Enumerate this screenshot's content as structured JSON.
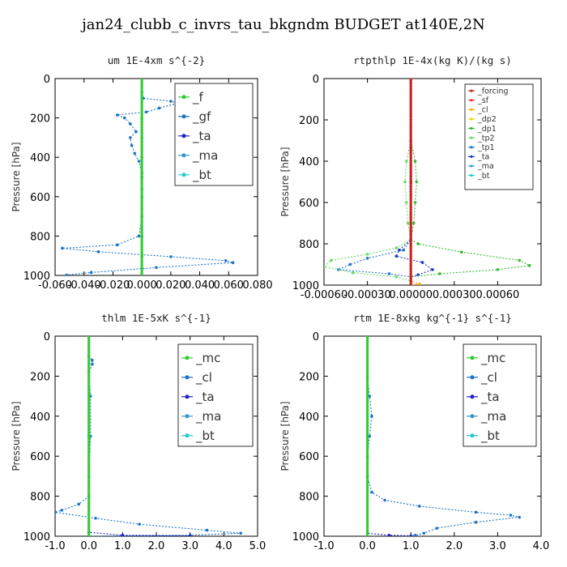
{
  "title": "jan24_clubb_c_invrs_tau_bkgndm  BUDGET at140E,2N",
  "chart_data": [
    {
      "type": "line",
      "title": "um   1E-4xm s^{-2}",
      "ylabel": "Pressure [hPa]",
      "xlim": [
        -0.06,
        0.08
      ],
      "ylim": [
        1000,
        0
      ],
      "xticks": [
        "-0.060",
        "-0.040",
        "-0.020",
        "0.000",
        "0.020",
        "0.040",
        "0.060",
        "0.080"
      ],
      "xtick_values": [
        -0.06,
        -0.04,
        -0.02,
        0.0,
        0.02,
        0.04,
        0.06,
        0.08
      ],
      "yticks": [
        0,
        200,
        400,
        600,
        800,
        1000
      ],
      "legend": [
        "_f",
        "_gf",
        "_ta",
        "_ma",
        "_bt"
      ],
      "series": [
        {
          "name": "_f",
          "color": "#33cc33",
          "points": [
            [
              0.0,
              0
            ],
            [
              0.0,
              100
            ],
            [
              0.0,
              200
            ],
            [
              0.0,
              300
            ],
            [
              0.0,
              400
            ],
            [
              0.0,
              500
            ],
            [
              0.0,
              600
            ],
            [
              0.0,
              700
            ],
            [
              0.0,
              800
            ],
            [
              0.0,
              900
            ],
            [
              0.0,
              1000
            ]
          ]
        },
        {
          "name": "_gf",
          "color": "#1a73c9",
          "points": [
            [
              0.0,
              70
            ],
            [
              0.001,
              100
            ],
            [
              0.02,
              115
            ],
            [
              0.025,
              125
            ],
            [
              0.012,
              150
            ],
            [
              0.003,
              170
            ],
            [
              -0.017,
              185
            ],
            [
              -0.012,
              200
            ],
            [
              -0.008,
              230
            ],
            [
              -0.004,
              270
            ],
            [
              -0.008,
              300
            ],
            [
              -0.007,
              340
            ],
            [
              -0.005,
              380
            ],
            [
              -0.002,
              420
            ],
            [
              0.0,
              480
            ],
            [
              0.0,
              560
            ],
            [
              0.0,
              700
            ],
            [
              -0.002,
              800
            ],
            [
              -0.017,
              845
            ],
            [
              -0.055,
              862
            ],
            [
              -0.03,
              880
            ],
            [
              0.02,
              905
            ],
            [
              0.058,
              925
            ],
            [
              0.063,
              935
            ],
            [
              0.01,
              960
            ],
            [
              -0.035,
              985
            ],
            [
              -0.052,
              998
            ]
          ]
        },
        {
          "name": "_ta",
          "color": "#2020cc",
          "points": [
            [
              0.0,
              0
            ],
            [
              0.0,
              500
            ],
            [
              0.0,
              1000
            ]
          ]
        },
        {
          "name": "_ma",
          "color": "#3399cc",
          "points": [
            [
              0.0,
              0
            ],
            [
              0.0,
              500
            ],
            [
              0.0,
              1000
            ]
          ]
        },
        {
          "name": "_bt",
          "color": "#22cccc",
          "points": [
            [
              0.0,
              0
            ],
            [
              0.0,
              500
            ],
            [
              0.0,
              1000
            ]
          ]
        }
      ],
      "legend_size": "large"
    },
    {
      "type": "line",
      "title": "rtpthlp   1E-4x(kg K)/(kg s)",
      "ylabel": "Pressure [hPa]",
      "xlim": [
        -0.0006,
        0.0009
      ],
      "ylim": [
        1000,
        0
      ],
      "xticks": [
        "-0.00060",
        "-0.00030",
        "0.00000",
        "0.00030",
        "0.00060"
      ],
      "xtick_values": [
        -0.0006,
        -0.0003,
        0.0,
        0.0003,
        0.0006
      ],
      "yticks": [
        0,
        200,
        400,
        600,
        800,
        1000
      ],
      "legend": [
        "_forcing",
        "_sf",
        "_cl",
        "_dp2",
        "_dp1",
        "_tp2",
        "_tp1",
        "_ta",
        "_ma",
        "_bt"
      ],
      "series": [
        {
          "name": "_forcing",
          "color": "#cc2222",
          "points": [
            [
              0.0,
              0
            ],
            [
              0.0,
              500
            ],
            [
              0.0,
              1000
            ]
          ]
        },
        {
          "name": "_sf",
          "color": "#ee3333",
          "points": [
            [
              0.0,
              0
            ],
            [
              0.0,
              500
            ],
            [
              0.0,
              1000
            ]
          ]
        },
        {
          "name": "_cl",
          "color": "#ffaa00",
          "points": [
            [
              0.0,
              0
            ],
            [
              0.0,
              980
            ],
            [
              6e-05,
              995
            ],
            [
              0.0,
              1000
            ]
          ]
        },
        {
          "name": "_dp2",
          "color": "#dddd00",
          "points": [
            [
              0.0,
              0
            ],
            [
              0.0,
              1000
            ]
          ]
        },
        {
          "name": "_dp1",
          "color": "#33bb33",
          "points": [
            [
              0.0,
              0
            ],
            [
              0.0,
              300
            ],
            [
              3e-05,
              400
            ],
            [
              4e-05,
              500
            ],
            [
              3e-05,
              600
            ],
            [
              2e-05,
              700
            ],
            [
              0.0,
              780
            ],
            [
              5e-05,
              800
            ],
            [
              0.00035,
              840
            ],
            [
              0.00075,
              880
            ],
            [
              0.00082,
              905
            ],
            [
              0.0006,
              925
            ],
            [
              0.0002,
              945
            ],
            [
              0.0,
              960
            ]
          ]
        },
        {
          "name": "_tp2",
          "color": "#66dd66",
          "points": [
            [
              0.0,
              0
            ],
            [
              0.0,
              300
            ],
            [
              -3e-05,
              400
            ],
            [
              -4e-05,
              500
            ],
            [
              -3e-05,
              600
            ],
            [
              -2e-05,
              700
            ],
            [
              0.0,
              780
            ],
            [
              -0.0001,
              820
            ],
            [
              -0.0003,
              850
            ],
            [
              -0.00055,
              880
            ],
            [
              -0.0006,
              910
            ],
            [
              -0.0004,
              940
            ],
            [
              -0.0001,
              960
            ],
            [
              0.0,
              980
            ]
          ]
        },
        {
          "name": "_tp1",
          "color": "#2277cc",
          "points": [
            [
              0.0,
              0
            ],
            [
              0.0,
              780
            ],
            [
              -5e-05,
              830
            ],
            [
              -0.0003,
              870
            ],
            [
              -0.00042,
              900
            ],
            [
              -0.0005,
              925
            ],
            [
              -0.00015,
              945
            ],
            [
              0.0,
              960
            ]
          ]
        },
        {
          "name": "_ta",
          "color": "#2233cc",
          "points": [
            [
              0.0,
              0
            ],
            [
              0.0,
              780
            ],
            [
              -8e-05,
              830
            ],
            [
              -0.0001,
              860
            ],
            [
              8e-05,
              890
            ],
            [
              0.00015,
              925
            ],
            [
              5e-05,
              950
            ],
            [
              0.0,
              960
            ]
          ]
        },
        {
          "name": "_ma",
          "color": "#3399cc",
          "points": [
            [
              0.0,
              0
            ],
            [
              0.0,
              1000
            ]
          ]
        },
        {
          "name": "_bt",
          "color": "#22cccc",
          "points": [
            [
              0.0,
              0
            ],
            [
              0.0,
              1000
            ]
          ]
        }
      ],
      "legend_size": "small"
    },
    {
      "type": "line",
      "title": "thlm   1E-5xK s^{-1}",
      "ylabel": "Pressure [hPa]",
      "xlim": [
        -1.0,
        5.0
      ],
      "ylim": [
        1000,
        0
      ],
      "xticks": [
        "-1.0",
        "0.0",
        "1.0",
        "2.0",
        "3.0",
        "4.0",
        "5.0"
      ],
      "xtick_values": [
        -1,
        0,
        1,
        2,
        3,
        4,
        5
      ],
      "yticks": [
        0,
        200,
        400,
        600,
        800,
        1000
      ],
      "legend": [
        "_mc",
        "_cl",
        "_ta",
        "_ma",
        "_bt"
      ],
      "series": [
        {
          "name": "_mc",
          "color": "#33cc33",
          "points": [
            [
              0.0,
              0
            ],
            [
              0.0,
              500
            ],
            [
              0.0,
              1000
            ]
          ]
        },
        {
          "name": "_cl",
          "color": "#1a73c9",
          "points": [
            [
              0.0,
              0
            ],
            [
              0.0,
              100
            ],
            [
              0.1,
              120
            ],
            [
              0.1,
              140
            ],
            [
              0.0,
              180
            ],
            [
              0.05,
              300
            ],
            [
              0.05,
              500
            ],
            [
              0.0,
              700
            ],
            [
              0.0,
              800
            ],
            [
              -0.3,
              840
            ],
            [
              -0.8,
              870
            ],
            [
              -1.0,
              880
            ],
            [
              0.2,
              910
            ],
            [
              1.5,
              940
            ],
            [
              3.5,
              970
            ],
            [
              4.5,
              985
            ],
            [
              3.0,
              995
            ],
            [
              0.0,
              1000
            ]
          ]
        },
        {
          "name": "_ta",
          "color": "#2020cc",
          "points": [
            [
              0.0,
              0
            ],
            [
              0.0,
              980
            ],
            [
              1.0,
              995
            ],
            [
              3.0,
              998
            ]
          ]
        },
        {
          "name": "_ma",
          "color": "#3399cc",
          "points": [
            [
              0.0,
              0
            ],
            [
              0.0,
              1000
            ]
          ]
        },
        {
          "name": "_bt",
          "color": "#22cccc",
          "points": [
            [
              0.0,
              0
            ],
            [
              0.0,
              1000
            ]
          ]
        }
      ],
      "legend_size": "large"
    },
    {
      "type": "line",
      "title": "rtm   1E-8xkg kg^{-1} s^{-1}",
      "ylabel": "Pressure [hPa]",
      "xlim": [
        -1.0,
        4.0
      ],
      "ylim": [
        1000,
        0
      ],
      "xticks": [
        "-1.0",
        "0.0",
        "1.0",
        "2.0",
        "3.0",
        "4.0"
      ],
      "xtick_values": [
        -1,
        0,
        1,
        2,
        3,
        4
      ],
      "yticks": [
        0,
        200,
        400,
        600,
        800,
        1000
      ],
      "legend": [
        "_mc",
        "_cl",
        "_ta",
        "_ma",
        "_bt"
      ],
      "series": [
        {
          "name": "_mc",
          "color": "#33cc33",
          "points": [
            [
              0.0,
              0
            ],
            [
              0.0,
              500
            ],
            [
              0.0,
              1000
            ]
          ]
        },
        {
          "name": "_cl",
          "color": "#1a73c9",
          "points": [
            [
              0.0,
              0
            ],
            [
              0.0,
              200
            ],
            [
              0.05,
              300
            ],
            [
              0.1,
              400
            ],
            [
              0.05,
              500
            ],
            [
              0.0,
              600
            ],
            [
              0.0,
              700
            ],
            [
              0.1,
              780
            ],
            [
              0.4,
              820
            ],
            [
              1.2,
              850
            ],
            [
              2.5,
              880
            ],
            [
              3.3,
              895
            ],
            [
              3.5,
              905
            ],
            [
              2.5,
              930
            ],
            [
              1.6,
              960
            ],
            [
              1.3,
              985
            ],
            [
              1.1,
              995
            ],
            [
              1.0,
              1000
            ]
          ]
        },
        {
          "name": "_ta",
          "color": "#2020cc",
          "points": [
            [
              0.0,
              0
            ],
            [
              0.0,
              985
            ],
            [
              0.5,
              995
            ],
            [
              1.0,
              998
            ]
          ]
        },
        {
          "name": "_ma",
          "color": "#3399cc",
          "points": [
            [
              0.0,
              0
            ],
            [
              0.0,
              1000
            ]
          ]
        },
        {
          "name": "_bt",
          "color": "#22cccc",
          "points": [
            [
              0.0,
              0
            ],
            [
              0.0,
              1000
            ]
          ]
        }
      ],
      "legend_size": "large"
    }
  ]
}
